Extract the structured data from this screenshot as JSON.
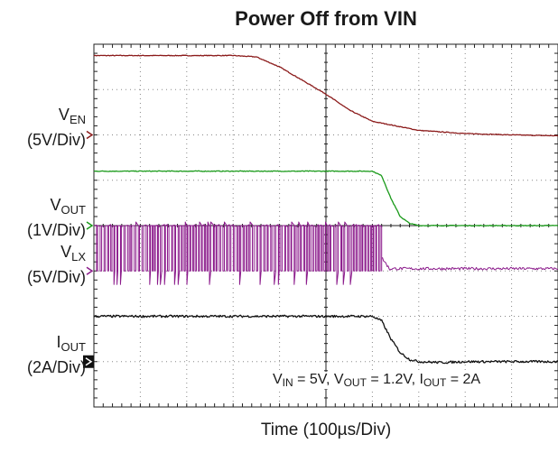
{
  "chart_data": {
    "type": "line",
    "title": "Power Off from VIN",
    "xlabel": "Time (100µs/Div)",
    "xlim": [
      0,
      1000
    ],
    "ylim": [
      0,
      8
    ],
    "grid": true,
    "divisions": {
      "x": 10,
      "y": 8
    },
    "channels": [
      {
        "id": "ven",
        "prefix": "V",
        "sub": "EN",
        "scale": "(5V/Div)",
        "color": "#8b1a1a",
        "marker": "chevron",
        "ref_div": 6.0,
        "x": [
          0,
          100,
          200,
          300,
          350,
          400,
          450,
          500,
          550,
          600,
          700,
          800,
          900,
          1000
        ],
        "y": [
          7.75,
          7.75,
          7.75,
          7.75,
          7.72,
          7.5,
          7.2,
          6.9,
          6.55,
          6.3,
          6.1,
          6.03,
          6.0,
          5.98
        ]
      },
      {
        "id": "vout",
        "prefix": "V",
        "sub": "OUT",
        "scale": "(1V/Div)",
        "color": "#1a9a1a",
        "marker": "chevron",
        "ref_div": 4.0,
        "x": [
          0,
          200,
          400,
          600,
          620,
          640,
          660,
          680,
          700,
          800,
          1000
        ],
        "y": [
          5.2,
          5.2,
          5.2,
          5.2,
          5.1,
          4.6,
          4.2,
          4.05,
          4.0,
          4.0,
          4.0
        ]
      },
      {
        "id": "vlx",
        "prefix": "V",
        "sub": "LX",
        "scale": "(5V/Div)",
        "color": "#8b1a8b",
        "marker": "chevron",
        "ref_div": 3.0,
        "switching_until": 620,
        "high": 4.0,
        "low": 3.0,
        "settle": 3.05
      },
      {
        "id": "iout",
        "prefix": "I",
        "sub": "OUT",
        "scale": "(2A/Div)",
        "color": "#111111",
        "marker": "box",
        "ref_div": 1.0,
        "x": [
          0,
          200,
          400,
          600,
          620,
          640,
          660,
          680,
          700,
          750,
          800,
          1000
        ],
        "y": [
          2.0,
          2.0,
          2.0,
          2.0,
          1.9,
          1.5,
          1.2,
          1.05,
          1.0,
          0.98,
          1.0,
          1.0
        ]
      }
    ],
    "annotation": {
      "p1": "V",
      "s1": "IN",
      "t1": " = 5V, V",
      "s2": "OUT",
      "t2": " = 1.2V, I",
      "s3": "OUT",
      "t3": " = 2A"
    }
  }
}
